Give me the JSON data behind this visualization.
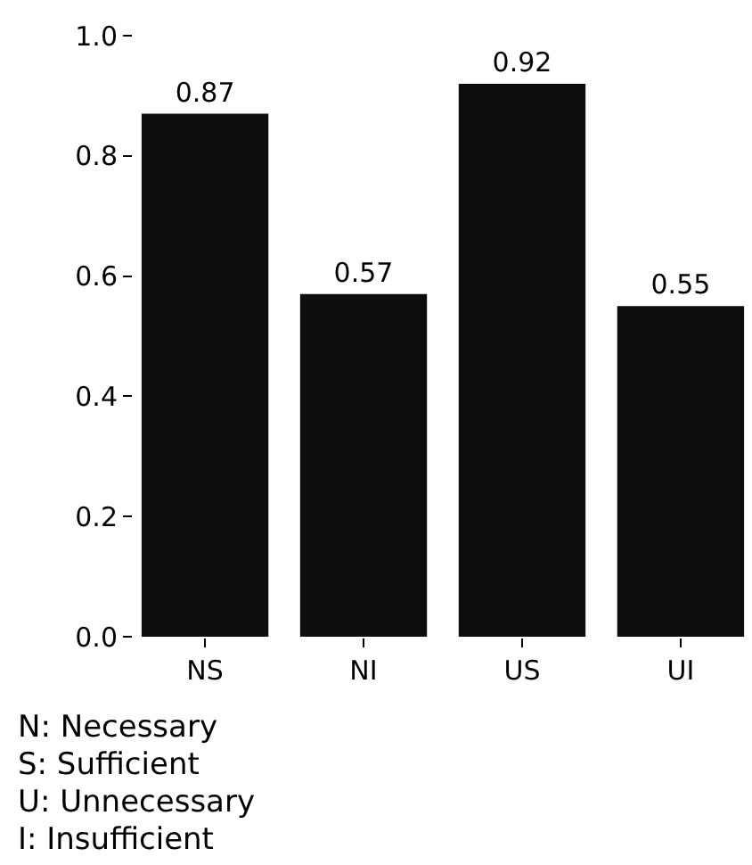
{
  "chart_data": {
    "type": "bar",
    "categories": [
      "NS",
      "NI",
      "US",
      "UI"
    ],
    "values": [
      0.87,
      0.57,
      0.92,
      0.55
    ],
    "color": "#0d0d0d",
    "data_labels": true,
    "ylim": [
      0,
      1.0
    ],
    "yticks": [
      {
        "value": 0,
        "label": "0.0"
      },
      0.2,
      0.4,
      0.6,
      0.8,
      {
        "value": 1,
        "label": "1.0"
      }
    ],
    "legend": false,
    "annotations": [
      "N: Necessary",
      "S: Sufficient",
      "U: Unnecessary",
      "I: Insufficient"
    ]
  }
}
